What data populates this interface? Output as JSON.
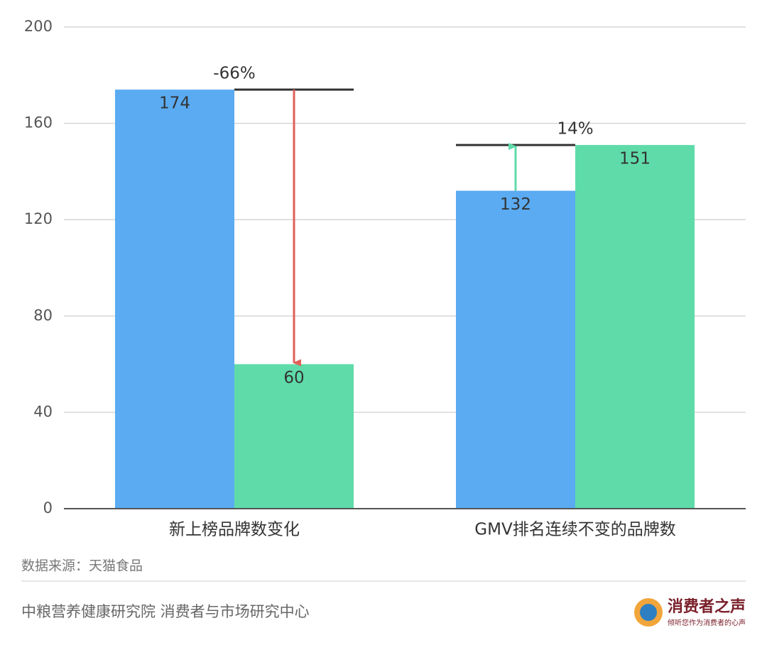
{
  "chart_data": {
    "type": "bar",
    "categories": [
      "新上榜品牌数变化",
      "GMV排名连续不变的品牌数"
    ],
    "series": [
      {
        "color": "#5aabf2",
        "values": [
          174,
          132
        ]
      },
      {
        "color": "#5fdba9",
        "values": [
          60,
          151
        ]
      }
    ],
    "annotations": [
      "-66%",
      "14%"
    ],
    "ylim": [
      0,
      200
    ],
    "yticks": [
      0,
      40,
      80,
      120,
      160,
      200
    ],
    "grid": true,
    "source": "数据来源：天猫食品"
  },
  "footer": {
    "text": "中粮营养健康研究院 消费者与市场研究中心",
    "logo_title": "消费者之声",
    "logo_subtitle": "倾听您作为消费者的心声"
  }
}
